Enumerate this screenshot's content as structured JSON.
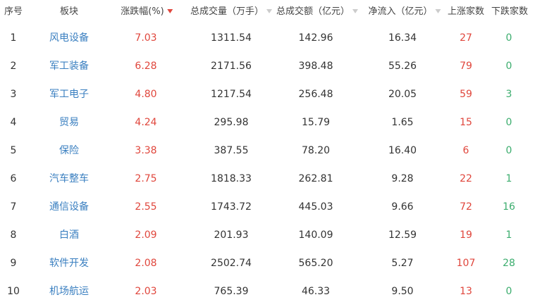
{
  "colors": {
    "name": "#3a7fc0",
    "up": "#e0463c",
    "down": "#3cad6e",
    "text": "#333333"
  },
  "header": {
    "rank": "序号",
    "sector": "板块",
    "change": "涨跌幅(%)",
    "volume": "总成交量（万手）",
    "amount": "总成交额（亿元）",
    "inflow": "净流入（亿元）",
    "up_count": "上涨家数",
    "down_count": "下跌家数",
    "sorted_column": "change"
  },
  "rows": [
    {
      "rank": "1",
      "sector": "风电设备",
      "change": "7.03",
      "volume": "1311.54",
      "amount": "142.96",
      "inflow": "16.34",
      "up_count": "27",
      "down_count": "0"
    },
    {
      "rank": "2",
      "sector": "军工装备",
      "change": "6.28",
      "volume": "2171.56",
      "amount": "398.48",
      "inflow": "55.26",
      "up_count": "79",
      "down_count": "0"
    },
    {
      "rank": "3",
      "sector": "军工电子",
      "change": "4.80",
      "volume": "1217.54",
      "amount": "256.48",
      "inflow": "20.05",
      "up_count": "59",
      "down_count": "3"
    },
    {
      "rank": "4",
      "sector": "贸易",
      "change": "4.24",
      "volume": "295.98",
      "amount": "15.79",
      "inflow": "1.65",
      "up_count": "15",
      "down_count": "0"
    },
    {
      "rank": "5",
      "sector": "保险",
      "change": "3.38",
      "volume": "387.55",
      "amount": "78.20",
      "inflow": "16.40",
      "up_count": "6",
      "down_count": "0"
    },
    {
      "rank": "6",
      "sector": "汽车整车",
      "change": "2.75",
      "volume": "1818.33",
      "amount": "262.81",
      "inflow": "9.28",
      "up_count": "22",
      "down_count": "1"
    },
    {
      "rank": "7",
      "sector": "通信设备",
      "change": "2.55",
      "volume": "1743.72",
      "amount": "445.03",
      "inflow": "9.66",
      "up_count": "72",
      "down_count": "16"
    },
    {
      "rank": "8",
      "sector": "白酒",
      "change": "2.09",
      "volume": "201.93",
      "amount": "140.09",
      "inflow": "12.59",
      "up_count": "19",
      "down_count": "1"
    },
    {
      "rank": "9",
      "sector": "软件开发",
      "change": "2.08",
      "volume": "2502.74",
      "amount": "565.20",
      "inflow": "5.27",
      "up_count": "107",
      "down_count": "28"
    },
    {
      "rank": "10",
      "sector": "机场航运",
      "change": "2.03",
      "volume": "765.39",
      "amount": "46.33",
      "inflow": "9.50",
      "up_count": "13",
      "down_count": "0"
    }
  ]
}
